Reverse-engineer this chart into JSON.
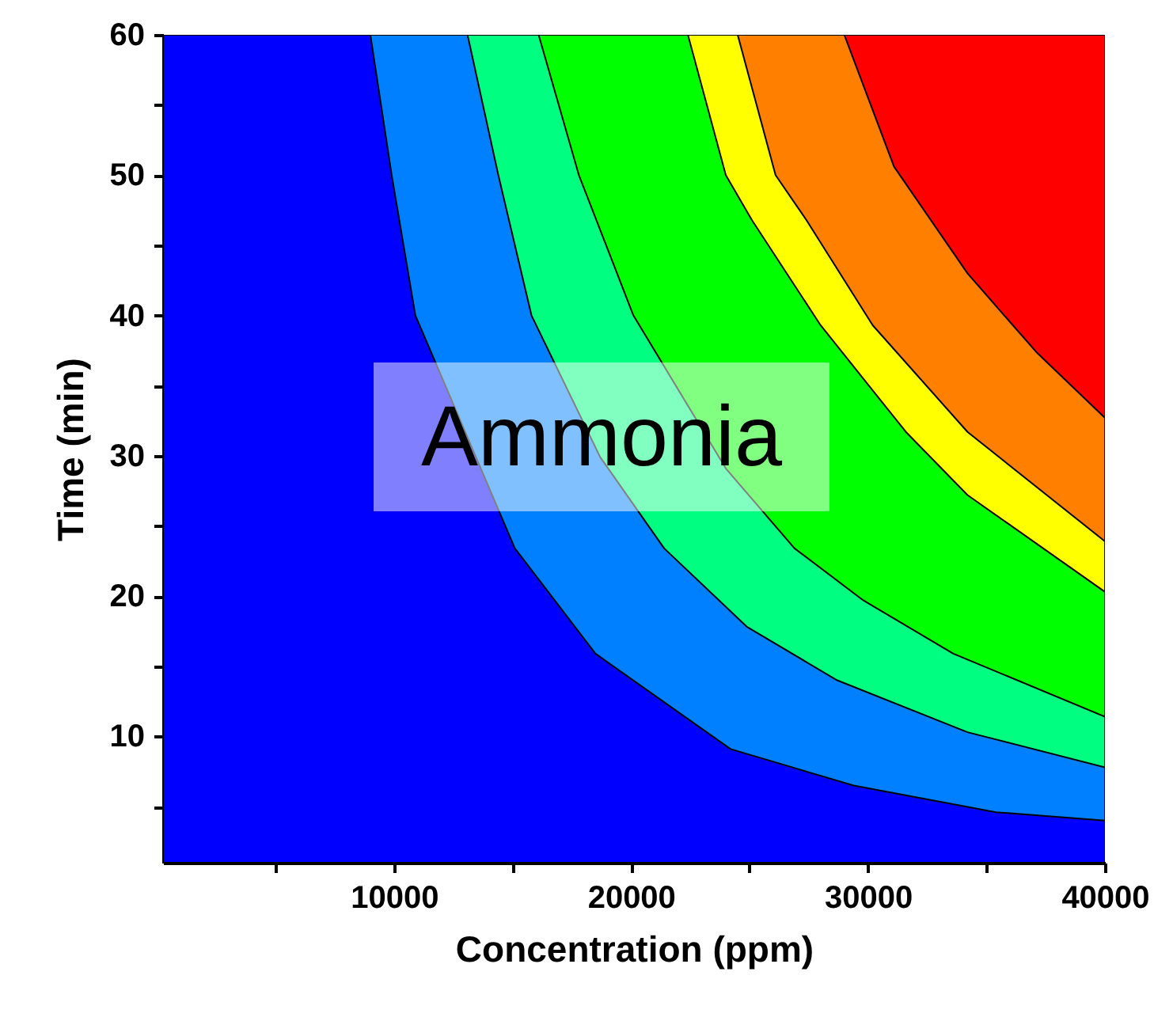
{
  "chart_data": {
    "type": "area",
    "xlabel": "Concentration (ppm)",
    "ylabel": "Time (min)",
    "annotations": [
      "Ammonia"
    ],
    "xlim": [
      250,
      40000
    ],
    "ylim": [
      1,
      60
    ],
    "xticks": [
      {
        "value": 5000,
        "label": null
      },
      10000,
      {
        "value": 15000,
        "label": null
      },
      20000,
      {
        "value": 25000,
        "label": null
      },
      30000,
      {
        "value": 35000,
        "label": null
      },
      40000
    ],
    "yticks": [
      {
        "value": 5,
        "label": null
      },
      10,
      {
        "value": 15,
        "label": null
      },
      20,
      {
        "value": 25,
        "label": null
      },
      30,
      {
        "value": 35,
        "label": null
      },
      40,
      {
        "value": 45,
        "label": null
      },
      50,
      {
        "value": 55,
        "label": null
      },
      60
    ],
    "grid": false,
    "series": [
      {
        "color": "#ff0000",
        "x": [
          29000,
          40000
        ],
        "values": [
          60,
          60
        ]
      },
      {
        "color": "#ff8000",
        "x": [
          24500,
          29000,
          31100,
          34200,
          37100,
          40000
        ],
        "values": [
          60,
          60,
          50.6,
          43.0,
          37.4,
          32.7
        ]
      },
      {
        "color": "#ffff00",
        "x": [
          22400,
          24500,
          26100,
          27400,
          30200,
          34200,
          40000
        ],
        "values": [
          60,
          60,
          50,
          46.8,
          39.3,
          31.7,
          23.9
        ]
      },
      {
        "color": "#00ff00",
        "x": [
          16100,
          22400,
          24000,
          25100,
          28000,
          31600,
          34200,
          40000
        ],
        "values": [
          60,
          60,
          50,
          46.8,
          39.3,
          31.7,
          27.2,
          20.3
        ]
      },
      {
        "color": "#00ff80",
        "x": [
          13100,
          16100,
          17800,
          20100,
          24000,
          26900,
          29800,
          33600,
          40000
        ],
        "values": [
          60,
          60,
          50,
          40,
          29.1,
          23.4,
          19.7,
          15.9,
          11.4
        ]
      },
      {
        "color": "#0080ff",
        "x": [
          9000,
          13100,
          14400,
          15800,
          18700,
          21400,
          24900,
          28700,
          34200,
          40000
        ],
        "values": [
          60,
          60,
          50,
          40,
          29.9,
          23.4,
          17.8,
          14.0,
          10.3,
          7.8
        ]
      },
      {
        "color": "#0000ff",
        "x": [
          250,
          9000,
          9900,
          10900,
          15100,
          18500,
          24200,
          29400,
          35400,
          40000
        ],
        "values": [
          60,
          60,
          50,
          40,
          23.4,
          15.9,
          9.1,
          6.5,
          4.6,
          4.0
        ]
      }
    ]
  }
}
